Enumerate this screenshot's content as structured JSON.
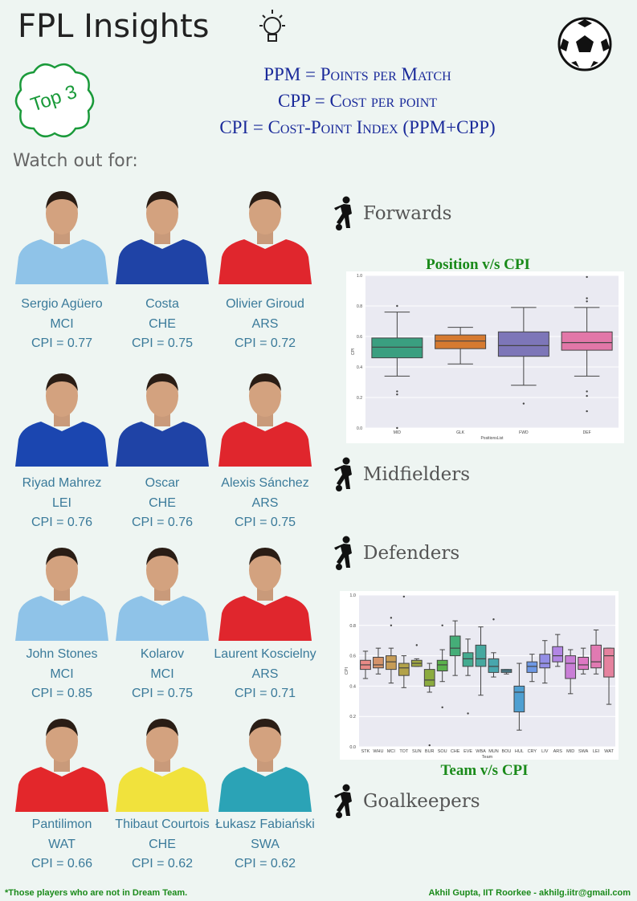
{
  "header": {
    "title": "FPL Insights",
    "badge": "Top 3",
    "definitions": [
      "PPM = Points per Match",
      "CPP = Cost per point",
      "CPI = Cost-Point Index (PPM+CPP)"
    ],
    "subtitle": "Watch out for:"
  },
  "players": [
    {
      "name": "Sergio Agüero",
      "team": "MCI",
      "cpi": "CPI = 0.77",
      "kit": "#8fc3e8"
    },
    {
      "name": "Costa",
      "team": "CHE",
      "cpi": "CPI = 0.75",
      "kit": "#1f43a6"
    },
    {
      "name": "Olivier Giroud",
      "team": "ARS",
      "cpi": "CPI = 0.72",
      "kit": "#e0262d"
    },
    {
      "name": "Riyad Mahrez",
      "team": "LEI",
      "cpi": "CPI = 0.76",
      "kit": "#1b46b0"
    },
    {
      "name": "Oscar",
      "team": "CHE",
      "cpi": "CPI = 0.76",
      "kit": "#1f43a6"
    },
    {
      "name": "Alexis Sánchez",
      "team": "ARS",
      "cpi": "CPI = 0.75",
      "kit": "#e0262d"
    },
    {
      "name": "John Stones",
      "team": "MCI",
      "cpi": "CPI = 0.85",
      "kit": "#8fc3e8"
    },
    {
      "name": "Kolarov",
      "team": "MCI",
      "cpi": "CPI = 0.75",
      "kit": "#8fc3e8"
    },
    {
      "name": "Laurent Koscielny",
      "team": "ARS",
      "cpi": "CPI = 0.71",
      "kit": "#e0262d"
    },
    {
      "name": "Pantilimon",
      "team": "WAT",
      "cpi": "CPI = 0.66",
      "kit": "#e3272b"
    },
    {
      "name": "Thibaut Courtois",
      "team": "CHE",
      "cpi": "CPI = 0.62",
      "kit": "#f1e23c"
    },
    {
      "name": "Łukasz Fabiański",
      "team": "SWA",
      "cpi": "CPI = 0.62",
      "kit": "#2ba3b6"
    }
  ],
  "sections": [
    "Forwards",
    "Midfielders",
    "Defenders",
    "Goalkeepers"
  ],
  "chart_data": [
    {
      "type": "box",
      "title": "Position v/s CPI",
      "x_label": "PositionsList",
      "y_label": "CPI",
      "categories": [
        "MID",
        "GLK",
        "FWD",
        "DEF"
      ],
      "colors": [
        "#3a9f80",
        "#d67a30",
        "#7d76b8",
        "#e277a8"
      ],
      "boxes": [
        {
          "low": 0.34,
          "q1": 0.46,
          "median": 0.53,
          "q3": 0.59,
          "high": 0.76,
          "outliers": [
            0.8,
            0.24,
            0.22,
            0.0
          ]
        },
        {
          "low": 0.42,
          "q1": 0.52,
          "median": 0.57,
          "q3": 0.61,
          "high": 0.66,
          "outliers": []
        },
        {
          "low": 0.28,
          "q1": 0.47,
          "median": 0.54,
          "q3": 0.63,
          "high": 0.79,
          "outliers": [
            0.16
          ]
        },
        {
          "low": 0.34,
          "q1": 0.51,
          "median": 0.56,
          "q3": 0.63,
          "high": 0.79,
          "outliers": [
            0.99,
            0.85,
            0.83,
            0.24,
            0.21,
            0.11
          ]
        }
      ],
      "ylim": [
        0,
        1
      ],
      "yticks": [
        {
          "value": 0,
          "label": "0.0"
        },
        0.2,
        0.4,
        0.6,
        0.8,
        {
          "value": 1,
          "label": "1.0"
        }
      ]
    },
    {
      "type": "box",
      "title": "Team v/s CPI",
      "x_label": "Team",
      "y_label": "CPI",
      "categories": [
        "STK",
        "WHU",
        "MCI",
        "TOT",
        "SUN",
        "BUR",
        "SOU",
        "CHE",
        "EVE",
        "WBA",
        "MUN",
        "BOU",
        "HUL",
        "CRY",
        "LIV",
        "ARS",
        "MID",
        "SWA",
        "LEI",
        "WAT"
      ],
      "colors": [
        "#e88a86",
        "#d5936a",
        "#c69c57",
        "#b2a24a",
        "#a0a843",
        "#8bab3f",
        "#5bb14c",
        "#45ae78",
        "#44ab90",
        "#46a89f",
        "#48a6ad",
        "#4aa3bb",
        "#4e9fd1",
        "#6d98e4",
        "#938ee6",
        "#b286e4",
        "#c97ed6",
        "#dd78c3",
        "#e17ab2",
        "#e5829e"
      ],
      "boxes": [
        {
          "low": 0.45,
          "q1": 0.51,
          "median": 0.54,
          "q3": 0.57,
          "high": 0.63,
          "outliers": []
        },
        {
          "low": 0.48,
          "q1": 0.52,
          "median": 0.54,
          "q3": 0.59,
          "high": 0.65,
          "outliers": []
        },
        {
          "low": 0.42,
          "q1": 0.51,
          "median": 0.56,
          "q3": 0.6,
          "high": 0.65,
          "outliers": [
            0.85,
            0.8
          ]
        },
        {
          "low": 0.39,
          "q1": 0.47,
          "median": 0.52,
          "q3": 0.55,
          "high": 0.6,
          "outliers": [
            0.99
          ]
        },
        {
          "low": 0.53,
          "q1": 0.53,
          "median": 0.55,
          "q3": 0.57,
          "high": 0.58,
          "outliers": [
            0.67
          ]
        },
        {
          "low": 0.36,
          "q1": 0.4,
          "median": 0.44,
          "q3": 0.51,
          "high": 0.55,
          "outliers": [
            0.01
          ]
        },
        {
          "low": 0.43,
          "q1": 0.5,
          "median": 0.54,
          "q3": 0.57,
          "high": 0.64,
          "outliers": [
            0.8,
            0.26
          ]
        },
        {
          "low": 0.47,
          "q1": 0.6,
          "median": 0.65,
          "q3": 0.73,
          "high": 0.83,
          "outliers": []
        },
        {
          "low": 0.47,
          "q1": 0.53,
          "median": 0.58,
          "q3": 0.62,
          "high": 0.71,
          "outliers": [
            0.22
          ]
        },
        {
          "low": 0.34,
          "q1": 0.53,
          "median": 0.58,
          "q3": 0.67,
          "high": 0.79,
          "outliers": []
        },
        {
          "low": 0.46,
          "q1": 0.49,
          "median": 0.53,
          "q3": 0.58,
          "high": 0.62,
          "outliers": [
            0.84
          ]
        },
        {
          "low": 0.48,
          "q1": 0.49,
          "median": 0.5,
          "q3": 0.51,
          "high": 0.51,
          "outliers": []
        },
        {
          "low": 0.11,
          "q1": 0.23,
          "median": 0.36,
          "q3": 0.4,
          "high": 0.55,
          "outliers": []
        },
        {
          "low": 0.43,
          "q1": 0.49,
          "median": 0.53,
          "q3": 0.56,
          "high": 0.61,
          "outliers": []
        },
        {
          "low": 0.42,
          "q1": 0.52,
          "median": 0.55,
          "q3": 0.61,
          "high": 0.7,
          "outliers": []
        },
        {
          "low": 0.53,
          "q1": 0.56,
          "median": 0.6,
          "q3": 0.66,
          "high": 0.74,
          "outliers": []
        },
        {
          "low": 0.35,
          "q1": 0.45,
          "median": 0.55,
          "q3": 0.6,
          "high": 0.64,
          "outliers": []
        },
        {
          "low": 0.48,
          "q1": 0.51,
          "median": 0.54,
          "q3": 0.59,
          "high": 0.65,
          "outliers": []
        },
        {
          "low": 0.48,
          "q1": 0.52,
          "median": 0.56,
          "q3": 0.67,
          "high": 0.77,
          "outliers": []
        },
        {
          "low": 0.28,
          "q1": 0.46,
          "median": 0.6,
          "q3": 0.65,
          "high": 0.65,
          "outliers": []
        }
      ],
      "ylim": [
        0,
        1
      ],
      "yticks": [
        {
          "value": 0,
          "label": "0.0"
        },
        0.2,
        0.4,
        0.6,
        0.8,
        {
          "value": 1,
          "label": "1.0"
        }
      ]
    }
  ],
  "footer": {
    "note": "*Those players who are not in Dream Team.",
    "credit": "Akhil Gupta, IIT Roorkee - akhilg.iitr@gmail.com"
  }
}
